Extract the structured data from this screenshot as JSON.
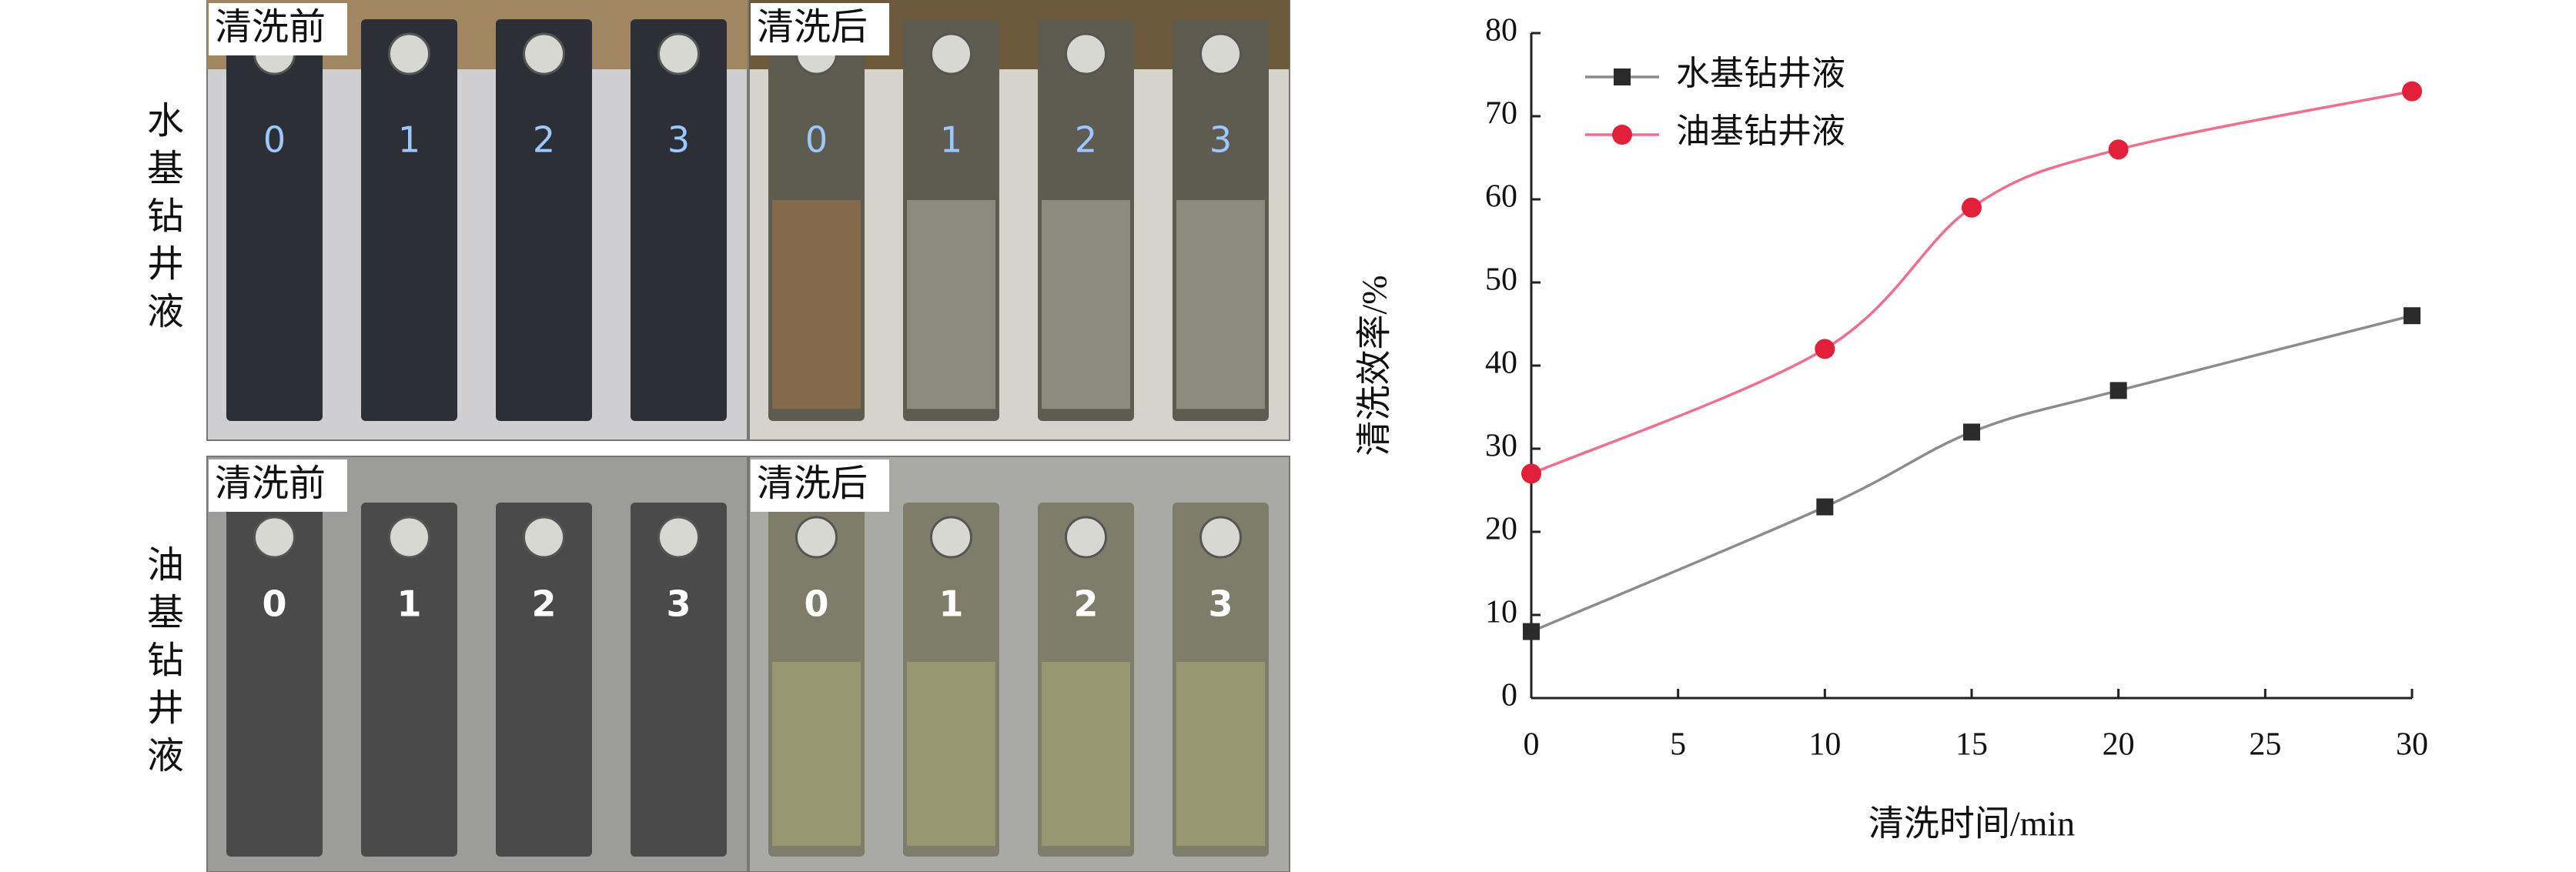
{
  "photos": {
    "rows": [
      {
        "label": "水基钻井液",
        "panels": [
          {
            "caption": "清洗前",
            "samples": [
              "0",
              "1",
              "2",
              "3"
            ]
          },
          {
            "caption": "清洗后",
            "samples": [
              "0",
              "1",
              "2",
              "3"
            ]
          }
        ]
      },
      {
        "label": "油基钻井液",
        "panels": [
          {
            "caption": "清洗前",
            "samples": [
              "0",
              "1",
              "2",
              "3"
            ]
          },
          {
            "caption": "清洗后",
            "samples": [
              "0",
              "1",
              "2",
              "3"
            ]
          }
        ]
      }
    ]
  },
  "chart_data": {
    "type": "line",
    "xlabel": "清洗时间/min",
    "ylabel": "清洗效率/%",
    "x": [
      0,
      10,
      15,
      20,
      30
    ],
    "series": [
      {
        "name": "水基钻井液",
        "color": "#8c8c8c",
        "marker": "square",
        "marker_color": "#2b2b2b",
        "values": [
          8,
          23,
          32,
          37,
          46
        ]
      },
      {
        "name": "油基钻井液",
        "color": "#ee6f8e",
        "marker": "circle",
        "marker_color": "#e3203a",
        "values": [
          27,
          42,
          59,
          66,
          73
        ]
      }
    ],
    "xlim": [
      0,
      30
    ],
    "xticks": [
      0,
      5,
      10,
      15,
      20,
      25,
      30
    ],
    "ylim": [
      0,
      80
    ],
    "yticks": [
      0,
      10,
      20,
      30,
      40,
      50,
      60,
      70,
      80
    ],
    "smooth": true,
    "legend": "upper-left"
  }
}
